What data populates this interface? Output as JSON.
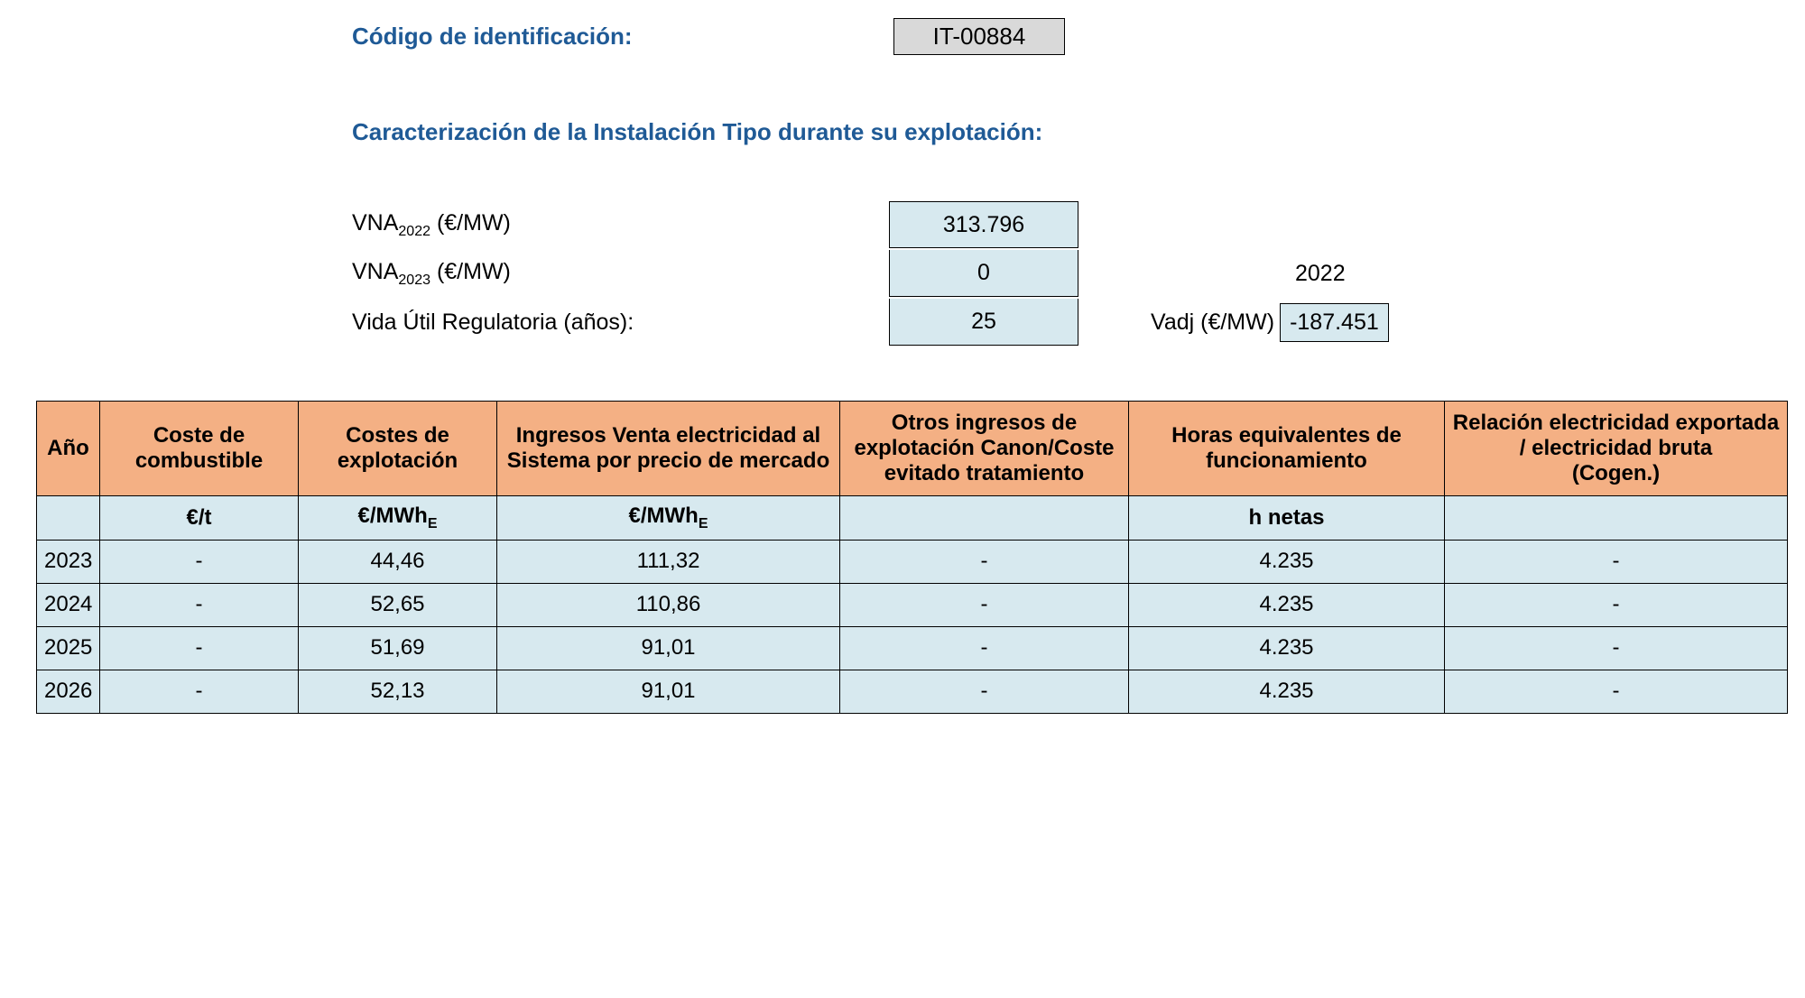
{
  "header": {
    "code_label": "Código de identificación:",
    "code_value": "IT-00884",
    "section_title": "Caracterización de la Instalación Tipo durante su explotación:"
  },
  "params": {
    "vna2022_label_pre": "VNA",
    "vna2022_sub": "2022",
    "vna2022_label_post": " (€/MW)",
    "vna2022_value": "313.796",
    "vna2023_label_pre": "VNA",
    "vna2023_sub": "2023",
    "vna2023_label_post": " (€/MW)",
    "vna2023_value": "0",
    "year_2022": "2022",
    "vida_label": "Vida Útil Regulatoria (años):",
    "vida_value": "25",
    "vadj_label": "Vadj (€/MW)",
    "vadj_value": "-187.451"
  },
  "table": {
    "columns": [
      "Año",
      "Coste de combustible",
      "Costes de explotación",
      "Ingresos Venta electricidad al Sistema por precio de mercado",
      "Otros ingresos de explotación Canon/Coste evitado tratamiento",
      "Horas equivalentes de funcionamiento",
      "Relación electricidad exportada / electricidad bruta\n(Cogen.)"
    ],
    "col_widths": [
      "70px",
      "220px",
      "220px",
      "380px",
      "320px",
      "350px",
      "380px"
    ],
    "units": [
      "",
      "€/t",
      "€/MWh_E",
      "€/MWh_E",
      "",
      "h netas",
      ""
    ],
    "rows": [
      [
        "2023",
        "-",
        "44,46",
        "111,32",
        "-",
        "4.235",
        "-"
      ],
      [
        "2024",
        "-",
        "52,65",
        "110,86",
        "-",
        "4.235",
        "-"
      ],
      [
        "2025",
        "-",
        "51,69",
        "91,01",
        "-",
        "4.235",
        "-"
      ],
      [
        "2026",
        "-",
        "52,13",
        "91,01",
        "-",
        "4.235",
        "-"
      ]
    ],
    "colors": {
      "header_bg": "#f4b084",
      "cell_bg": "#d7e9ef",
      "border": "#000000"
    }
  }
}
